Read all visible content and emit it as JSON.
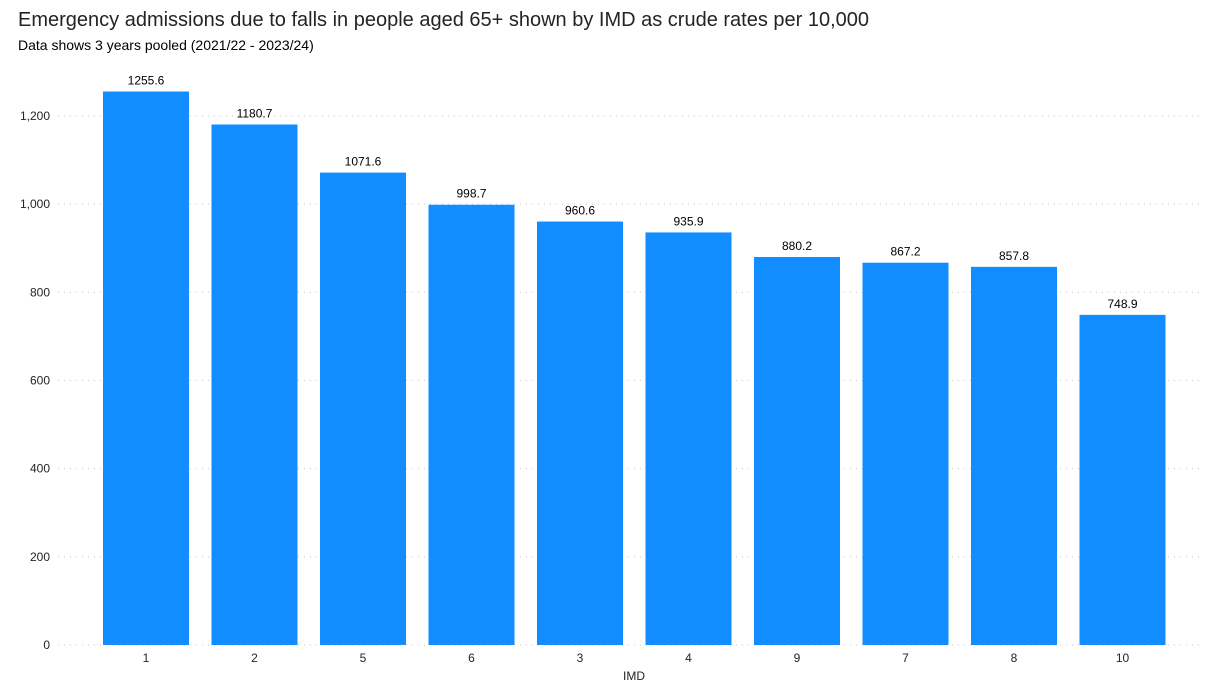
{
  "chart_data": {
    "type": "bar",
    "title": "Emergency admissions due to falls in people aged 65+ shown by IMD as crude rates per 10,000",
    "subtitle": "Data shows 3 years pooled (2021/22 - 2023/24)",
    "xlabel": "IMD",
    "ylabel": "",
    "categories": [
      "1",
      "2",
      "5",
      "6",
      "3",
      "4",
      "9",
      "7",
      "8",
      "10"
    ],
    "values": [
      1255.6,
      1180.7,
      1071.6,
      998.7,
      960.6,
      935.9,
      880.2,
      867.2,
      857.8,
      748.9
    ],
    "value_labels": [
      "1255.6",
      "1180.7",
      "1071.6",
      "998.7",
      "960.6",
      "935.9",
      "880.2",
      "867.2",
      "857.8",
      "748.9"
    ],
    "ylim": [
      0,
      1200
    ],
    "yticks": [
      0,
      200,
      400,
      600,
      800,
      1000,
      1200
    ],
    "ytick_labels": [
      "0",
      "200",
      "400",
      "600",
      "800",
      "1,000",
      "1,200"
    ],
    "grid": true,
    "bar_color": "#118DFF"
  }
}
